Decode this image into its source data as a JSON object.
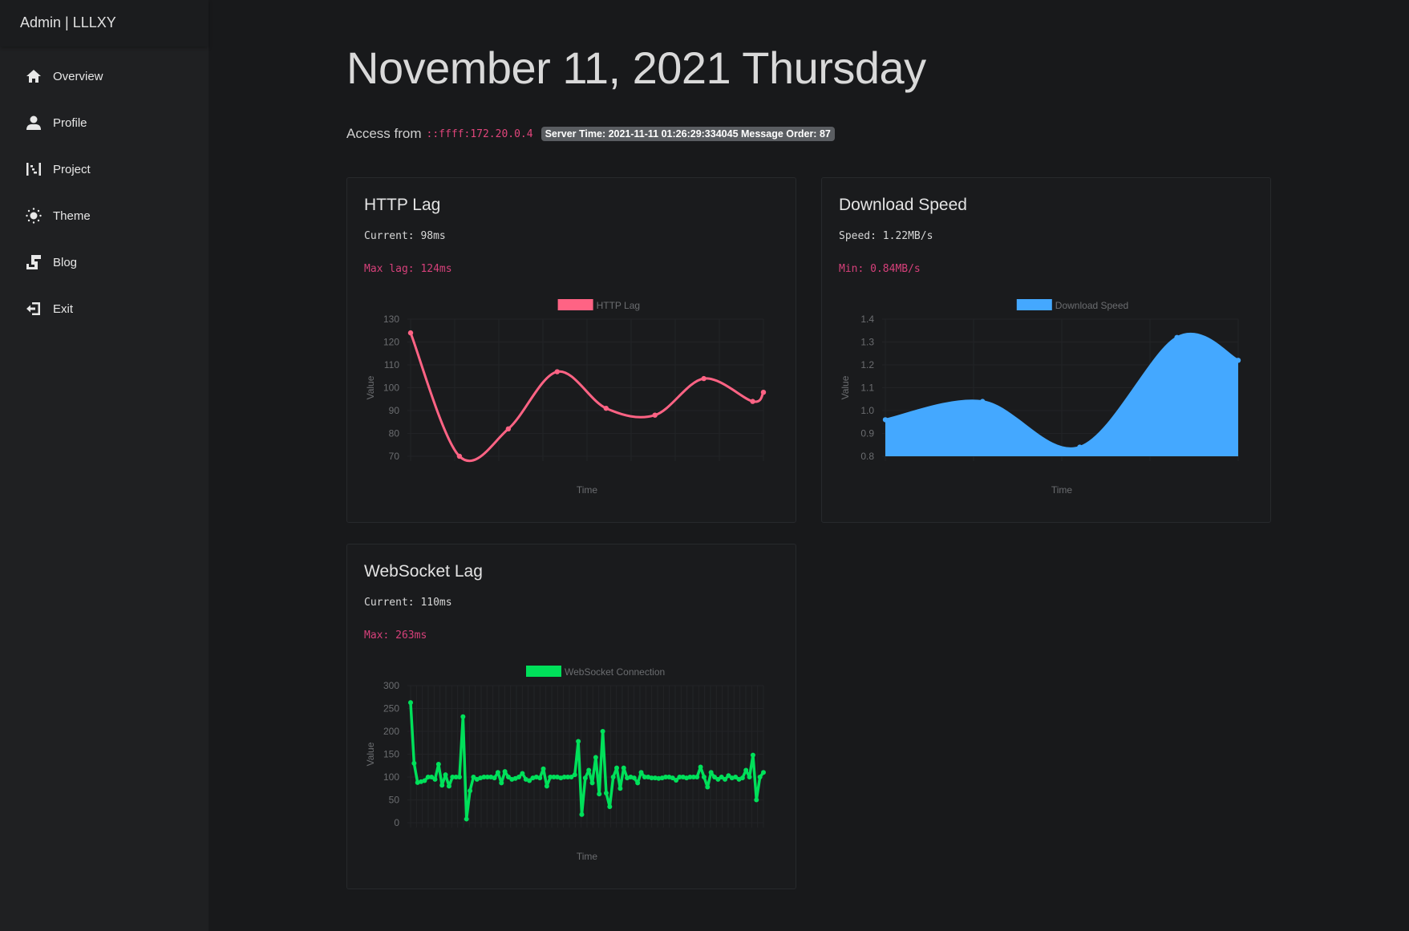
{
  "sidebar": {
    "brand": "Admin | LLLXY",
    "items": [
      {
        "label": "Overview",
        "icon": "home-icon"
      },
      {
        "label": "Profile",
        "icon": "user-icon"
      },
      {
        "label": "Project",
        "icon": "project-icon"
      },
      {
        "label": "Theme",
        "icon": "sun-icon"
      },
      {
        "label": "Blog",
        "icon": "blog-icon"
      },
      {
        "label": "Exit",
        "icon": "exit-icon"
      }
    ]
  },
  "header": {
    "title": "November 11, 2021 Thursday",
    "access_label": "Access from",
    "ip": "::ffff:172.20.0.4",
    "server_badge": "Server Time: 2021-11-11 01:26:29:334045 Message Order: 87"
  },
  "cards": {
    "http": {
      "title": "HTTP Lag",
      "current": "Current: 98ms",
      "max": "Max lag: 124ms"
    },
    "download": {
      "title": "Download Speed",
      "current": "Speed: 1.22MB/s",
      "max": "Min: 0.84MB/s"
    },
    "ws": {
      "title": "WebSocket Lag",
      "current": "Current: 110ms",
      "max": "Max: 263ms"
    }
  },
  "chart_data": [
    {
      "type": "line",
      "legend": "HTTP Lag",
      "color": "#ff6384",
      "xlabel": "Time",
      "ylabel": "Value",
      "ylim": [
        70,
        130
      ],
      "yticks": [
        "130",
        "120",
        "110",
        "100",
        "90",
        "80",
        "70"
      ],
      "fill": false,
      "x": [
        0,
        1,
        2,
        3,
        4,
        5,
        6,
        7,
        7.22
      ],
      "values": [
        124,
        70,
        82,
        107,
        91,
        88,
        104,
        94,
        98
      ]
    },
    {
      "type": "area",
      "legend": "Download Speed",
      "color": "#44a8ff",
      "xlabel": "Time",
      "ylabel": "Value",
      "ylim": [
        0.8,
        1.4
      ],
      "yticks": [
        "1.4",
        "1.3",
        "1.2",
        "1.1",
        "1.0",
        "0.9",
        "0.8"
      ],
      "fill": true,
      "x": [
        0,
        1,
        2,
        3,
        3.63
      ],
      "values": [
        0.96,
        1.04,
        0.84,
        1.32,
        1.22
      ]
    },
    {
      "type": "line",
      "legend": "WebSocket Connection",
      "color": "#00e05a",
      "xlabel": "Time",
      "ylabel": "Value",
      "ylim": [
        0,
        300
      ],
      "yticks": [
        "300",
        "250",
        "200",
        "150",
        "100",
        "50",
        "0"
      ],
      "fill": false,
      "straight": true,
      "values": [
        263,
        130,
        88,
        90,
        92,
        100,
        100,
        95,
        128,
        82,
        105,
        80,
        100,
        100,
        100,
        232,
        8,
        70,
        100,
        95,
        98,
        100,
        100,
        100,
        98,
        110,
        87,
        112,
        100,
        95,
        97,
        100,
        108,
        95,
        92,
        98,
        100,
        98,
        118,
        80,
        100,
        100,
        100,
        98,
        100,
        100,
        100,
        105,
        178,
        18,
        98,
        115,
        87,
        143,
        63,
        200,
        65,
        35,
        100,
        120,
        75,
        120,
        98,
        100,
        98,
        87,
        110,
        100,
        100,
        98,
        98,
        97,
        98,
        100,
        100,
        98,
        93,
        100,
        100,
        98,
        100,
        100,
        100,
        122,
        100,
        78,
        110,
        100,
        95,
        100,
        95,
        103,
        98,
        100,
        95,
        98,
        115,
        100,
        148,
        50,
        100,
        110
      ]
    }
  ]
}
